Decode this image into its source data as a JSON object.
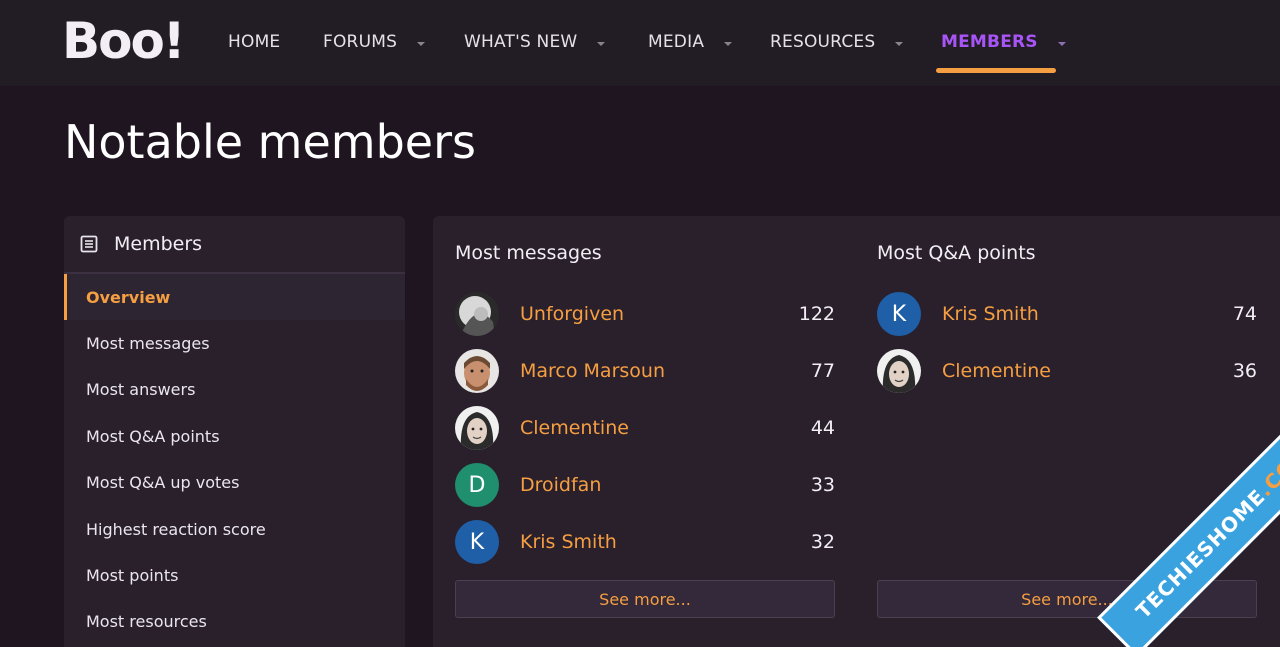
{
  "header": {
    "logo": "Boo!",
    "nav": [
      {
        "label": "HOME",
        "has_caret": false
      },
      {
        "label": "FORUMS",
        "has_caret": true
      },
      {
        "label": "WHAT'S NEW",
        "has_caret": true
      },
      {
        "label": "MEDIA",
        "has_caret": true
      },
      {
        "label": "RESOURCES",
        "has_caret": true
      },
      {
        "label": "MEMBERS",
        "has_caret": true,
        "active": true
      }
    ],
    "active_color": "#a855f7",
    "underline_color": "#f59e42"
  },
  "page": {
    "title": "Notable members"
  },
  "sidebar": {
    "title": "Members",
    "icon": "document-icon",
    "items": [
      {
        "label": "Overview",
        "active": true
      },
      {
        "label": "Most messages"
      },
      {
        "label": "Most answers"
      },
      {
        "label": "Most Q&A points"
      },
      {
        "label": "Most Q&A up votes"
      },
      {
        "label": "Highest reaction score"
      },
      {
        "label": "Most points"
      },
      {
        "label": "Most resources"
      }
    ]
  },
  "main": {
    "most_messages": {
      "title": "Most messages",
      "rows": [
        {
          "name": "Unforgiven",
          "count": "122",
          "avatar": "photo"
        },
        {
          "name": "Marco Marsoun",
          "count": "77",
          "avatar": "photo"
        },
        {
          "name": "Clementine",
          "count": "44",
          "avatar": "photo"
        },
        {
          "name": "Droidfan",
          "count": "33",
          "avatar_letter": "D",
          "avatar_color": "#1f8f6e"
        },
        {
          "name": "Kris Smith",
          "count": "32",
          "avatar_letter": "K",
          "avatar_color": "#1e5fa8"
        }
      ],
      "see_more": "See more..."
    },
    "most_qa_points": {
      "title": "Most Q&A points",
      "rows": [
        {
          "name": "Kris Smith",
          "count": "74",
          "avatar_letter": "K",
          "avatar_color": "#1e5fa8"
        },
        {
          "name": "Clementine",
          "count": "36",
          "avatar": "photo"
        }
      ],
      "see_more": "See more..."
    }
  },
  "watermark": {
    "text": "TECHIESHOME",
    "suffix": ".COM"
  },
  "colors": {
    "accent": "#f59e42",
    "background": "#1e1520",
    "panel": "#29202c"
  }
}
